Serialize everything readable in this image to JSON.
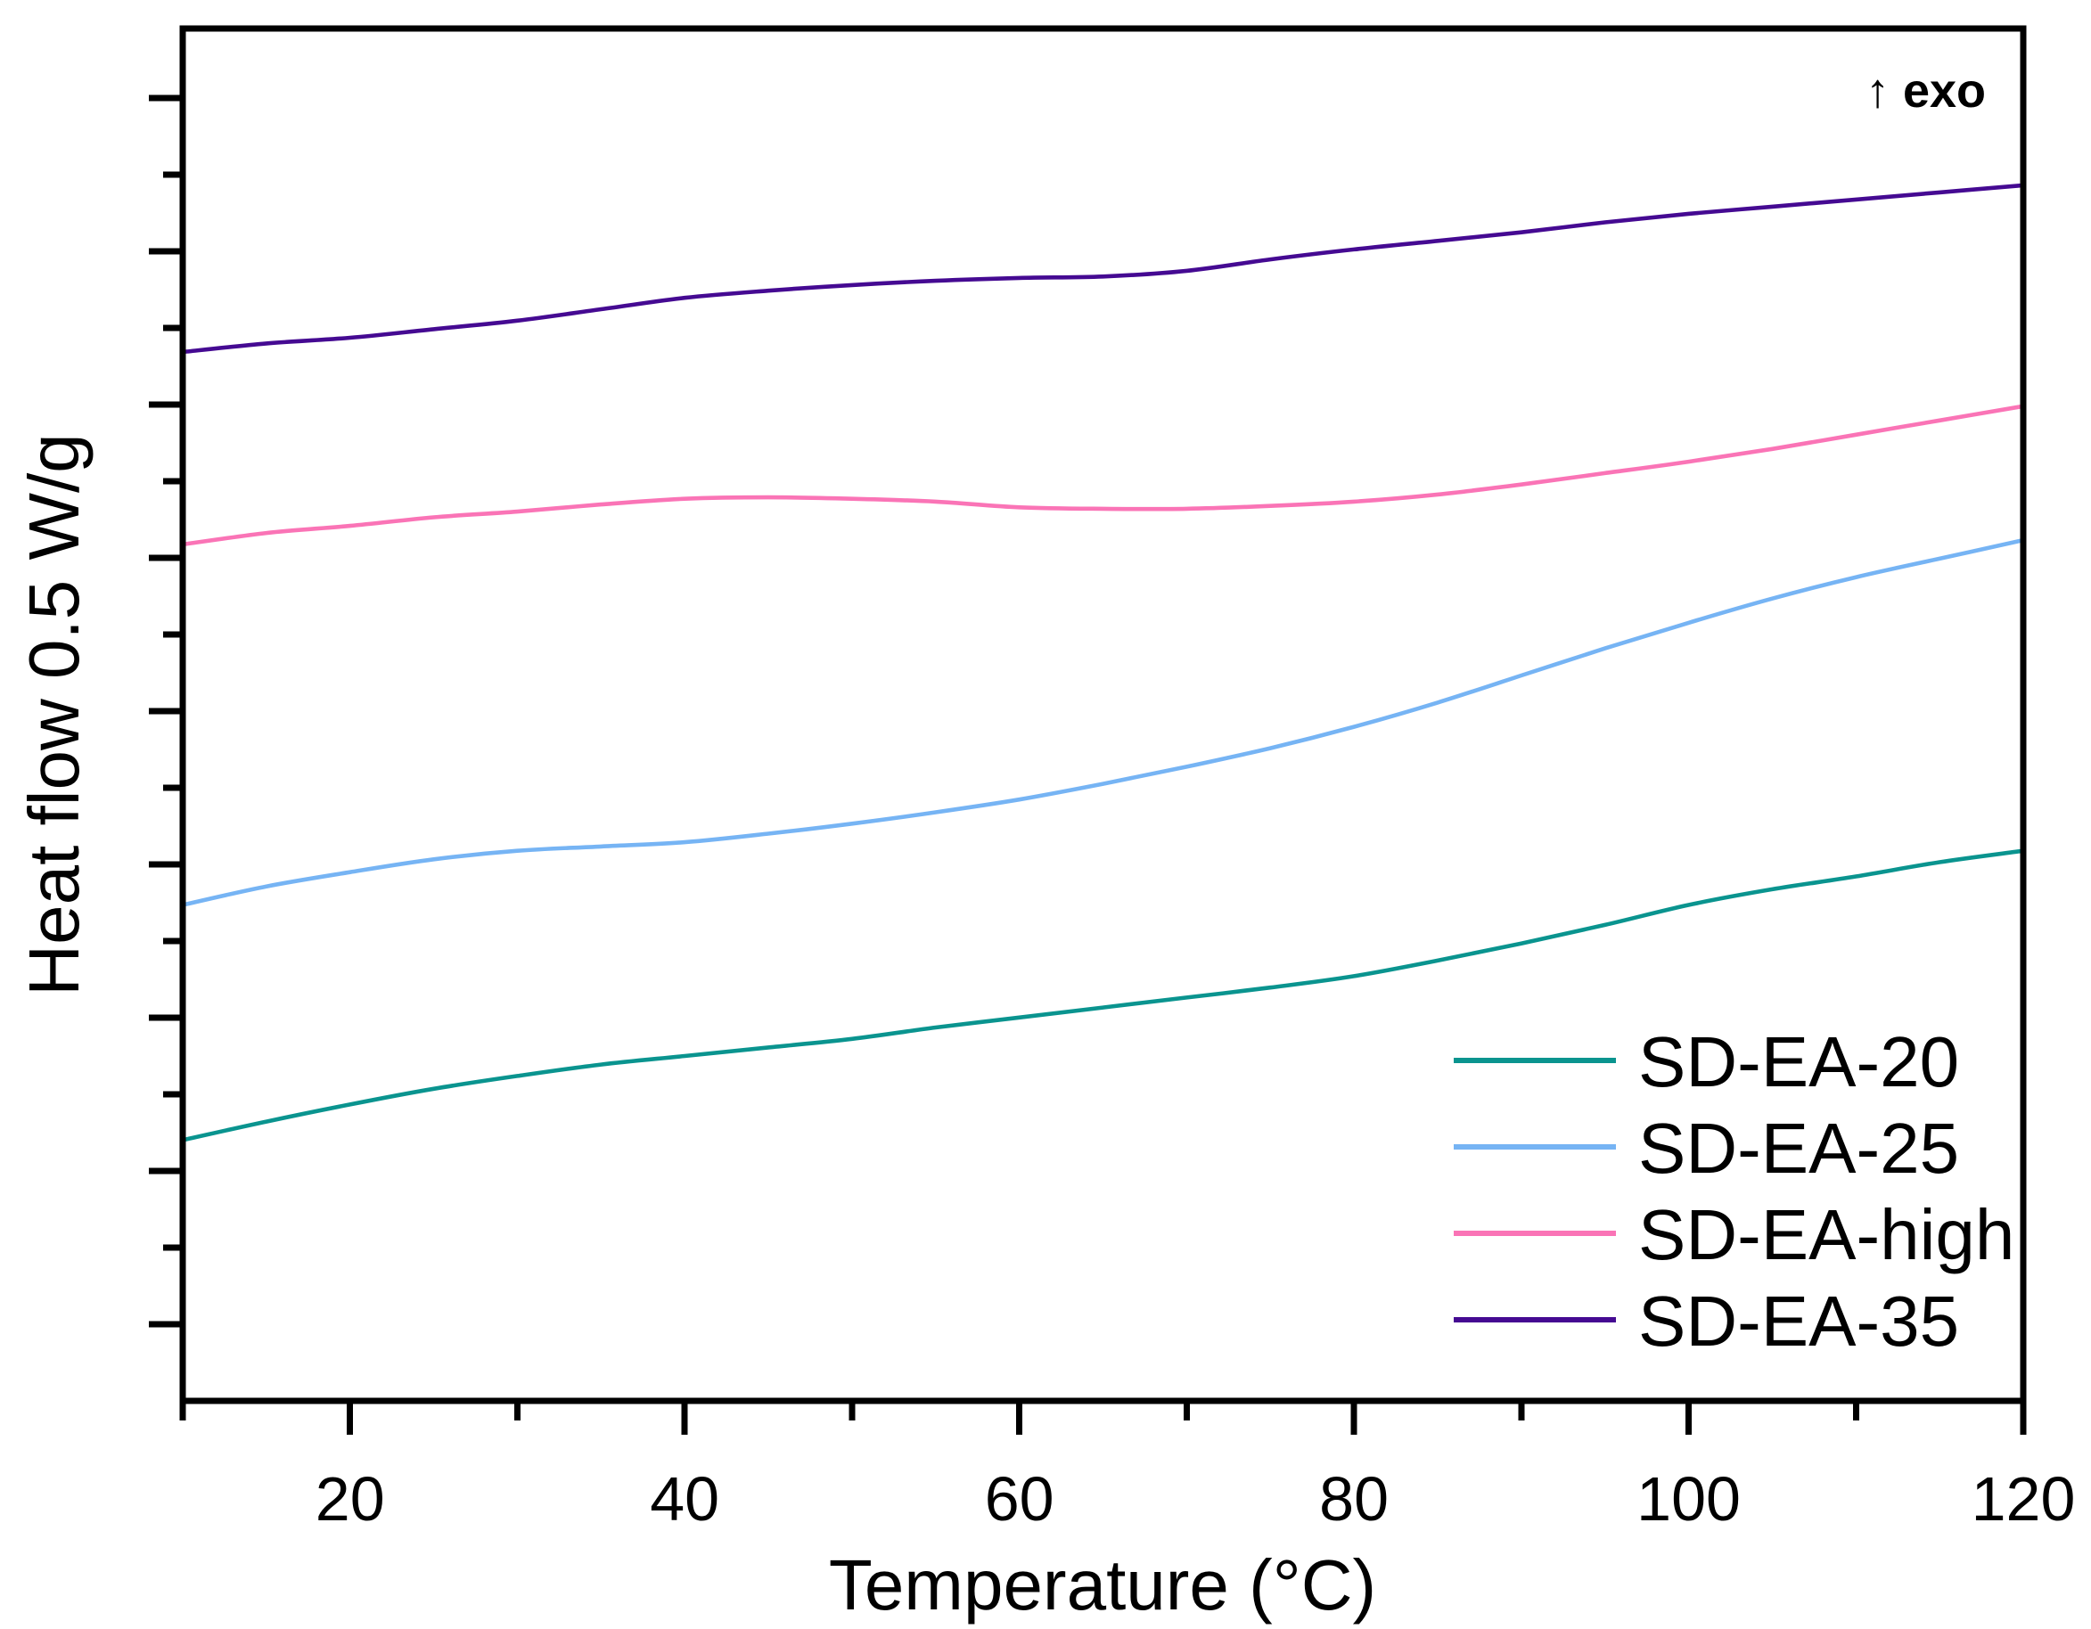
{
  "chart_data": {
    "type": "line",
    "title": "",
    "xlabel": "Temperature (°C)",
    "ylabel": "Heat flow 0.5 W/g",
    "annotation": "↑ exo",
    "xlim": [
      10,
      120
    ],
    "ylim": [
      0,
      9.63
    ],
    "x_ticks_major": [
      20,
      40,
      60,
      80,
      100,
      120
    ],
    "x_ticks_minor": [
      10,
      30,
      50,
      70,
      90,
      110
    ],
    "y_axis_numeric_labels": false,
    "grid": false,
    "legend_position": "lower right",
    "y_unit_note": "heat flow in arbitrary offset units; axis caption indicates 0.5 W/g scale",
    "x": [
      10,
      15,
      20,
      25,
      30,
      35,
      40,
      45,
      50,
      55,
      60,
      65,
      70,
      75,
      80,
      85,
      90,
      95,
      100,
      105,
      110,
      115,
      120
    ],
    "series": [
      {
        "name": "SD-EA-20",
        "color": "#0A948F",
        "y": [
          1.83,
          1.96,
          2.08,
          2.19,
          2.28,
          2.36,
          2.42,
          2.48,
          2.54,
          2.62,
          2.69,
          2.76,
          2.83,
          2.9,
          2.98,
          3.09,
          3.21,
          3.34,
          3.48,
          3.59,
          3.68,
          3.78,
          3.86
        ]
      },
      {
        "name": "SD-EA-25",
        "color": "#76B4F4",
        "y": [
          3.48,
          3.61,
          3.71,
          3.8,
          3.86,
          3.89,
          3.92,
          3.98,
          4.05,
          4.13,
          4.22,
          4.33,
          4.45,
          4.58,
          4.73,
          4.9,
          5.09,
          5.28,
          5.46,
          5.63,
          5.78,
          5.91,
          6.04
        ]
      },
      {
        "name": "SD-EA-high",
        "color": "#FA74B6",
        "y": [
          6.01,
          6.09,
          6.14,
          6.2,
          6.24,
          6.29,
          6.33,
          6.34,
          6.33,
          6.31,
          6.27,
          6.26,
          6.26,
          6.28,
          6.31,
          6.36,
          6.43,
          6.51,
          6.59,
          6.68,
          6.78,
          6.88,
          6.98
        ]
      },
      {
        "name": "SD-EA-35",
        "color": "#450A92",
        "y": [
          7.36,
          7.42,
          7.46,
          7.52,
          7.58,
          7.66,
          7.74,
          7.79,
          7.83,
          7.86,
          7.88,
          7.89,
          7.93,
          8.01,
          8.08,
          8.14,
          8.2,
          8.27,
          8.33,
          8.38,
          8.43,
          8.48,
          8.53
        ]
      }
    ]
  }
}
